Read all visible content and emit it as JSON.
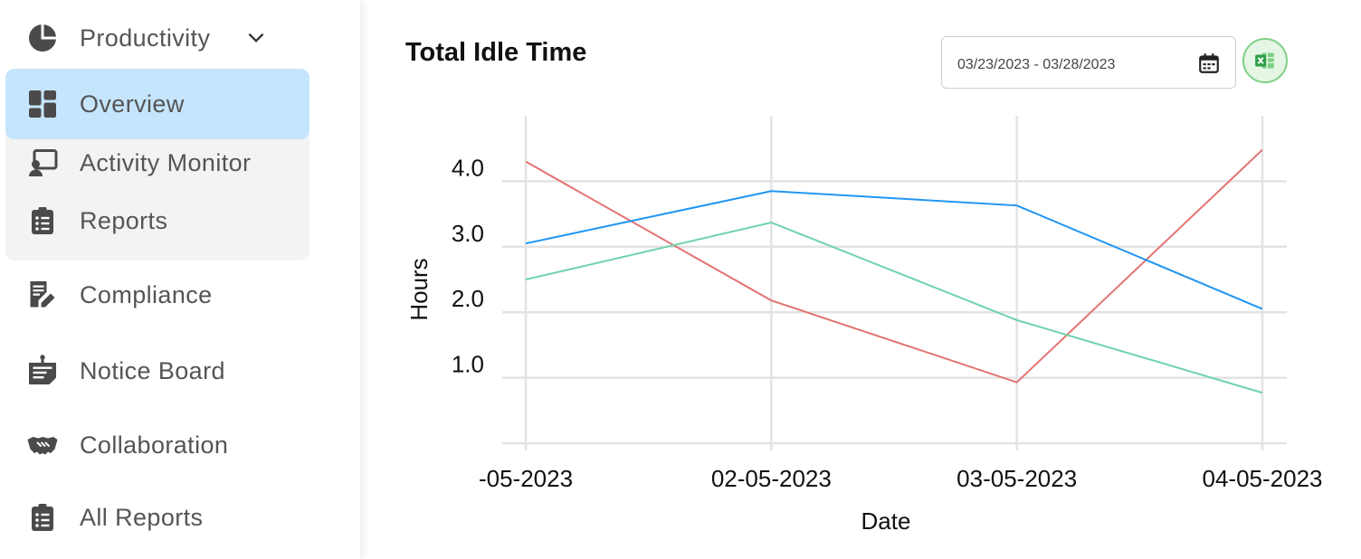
{
  "sidebar": {
    "items": [
      {
        "label": "Productivity",
        "icon": "pie-chart-icon"
      },
      {
        "label": "Overview",
        "icon": "dashboard-icon"
      },
      {
        "label": "Activity Monitor",
        "icon": "monitor-user-icon"
      },
      {
        "label": "Reports",
        "icon": "clipboard-list-icon"
      },
      {
        "label": "Compliance",
        "icon": "document-edit-icon"
      },
      {
        "label": "Notice Board",
        "icon": "notice-board-icon"
      },
      {
        "label": "Collaboration",
        "icon": "handshake-icon"
      },
      {
        "label": "All Reports",
        "icon": "clipboard-list-icon"
      }
    ],
    "active_color": "#c5e5fc",
    "group_bg": "#f3f3f3"
  },
  "main": {
    "title": "Total Idle Time",
    "date_range": "03/23/2023 - 03/28/2023"
  },
  "chart_data": {
    "type": "line",
    "x": [
      "-05-2023",
      "02-05-2023",
      "03-05-2023",
      "04-05-2023"
    ],
    "xlabel": "Date",
    "ylabel": "Hours",
    "yticks": [
      "1.0",
      "2.0",
      "3.0",
      "4.0"
    ],
    "ylim": [
      0,
      5.0
    ],
    "grid": true,
    "series": [
      {
        "color": "#e57373",
        "values": [
          4.3,
          2.18,
          0.93,
          4.48
        ]
      },
      {
        "color": "#2196f3",
        "values": [
          3.05,
          3.85,
          3.63,
          2.05
        ]
      },
      {
        "color": "#6fd3aa",
        "values": [
          2.5,
          3.37,
          1.88,
          0.77
        ]
      }
    ]
  }
}
